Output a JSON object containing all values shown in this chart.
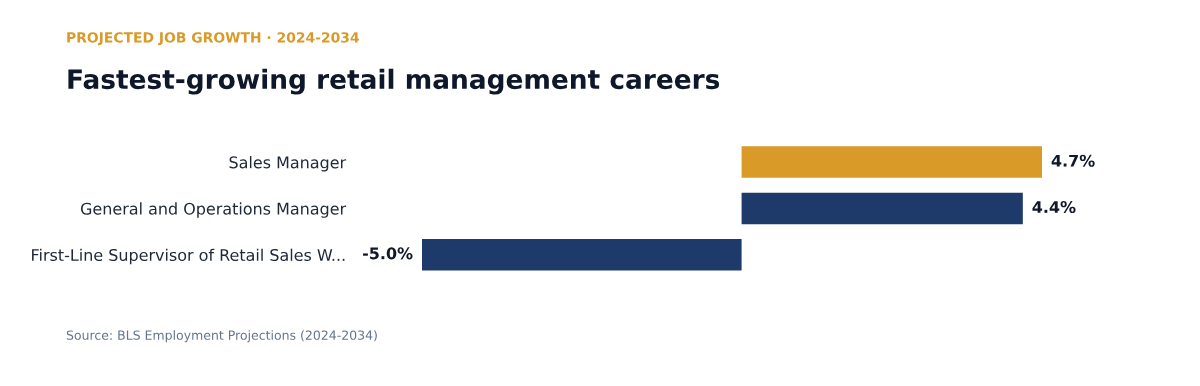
{
  "chart_data": {
    "type": "bar",
    "orientation": "horizontal",
    "subtitle": "PROJECTED JOB GROWTH · 2024-2034",
    "title": "Fastest-growing retail management careers",
    "categories": [
      "Sales Manager",
      "General and Operations Manager",
      "First-Line Supervisor of Retail Sales W..."
    ],
    "values": [
      4.7,
      4.4,
      -5.0
    ],
    "colors": [
      "#d99a28",
      "#1e3a6b",
      "#1e3a6b"
    ],
    "value_labels": [
      "4.7%",
      "4.4%",
      "-5.0%"
    ],
    "grid": false,
    "legend": false,
    "annotations": [
      "Source: BLS Employment Projections (2024-2034)"
    ]
  }
}
